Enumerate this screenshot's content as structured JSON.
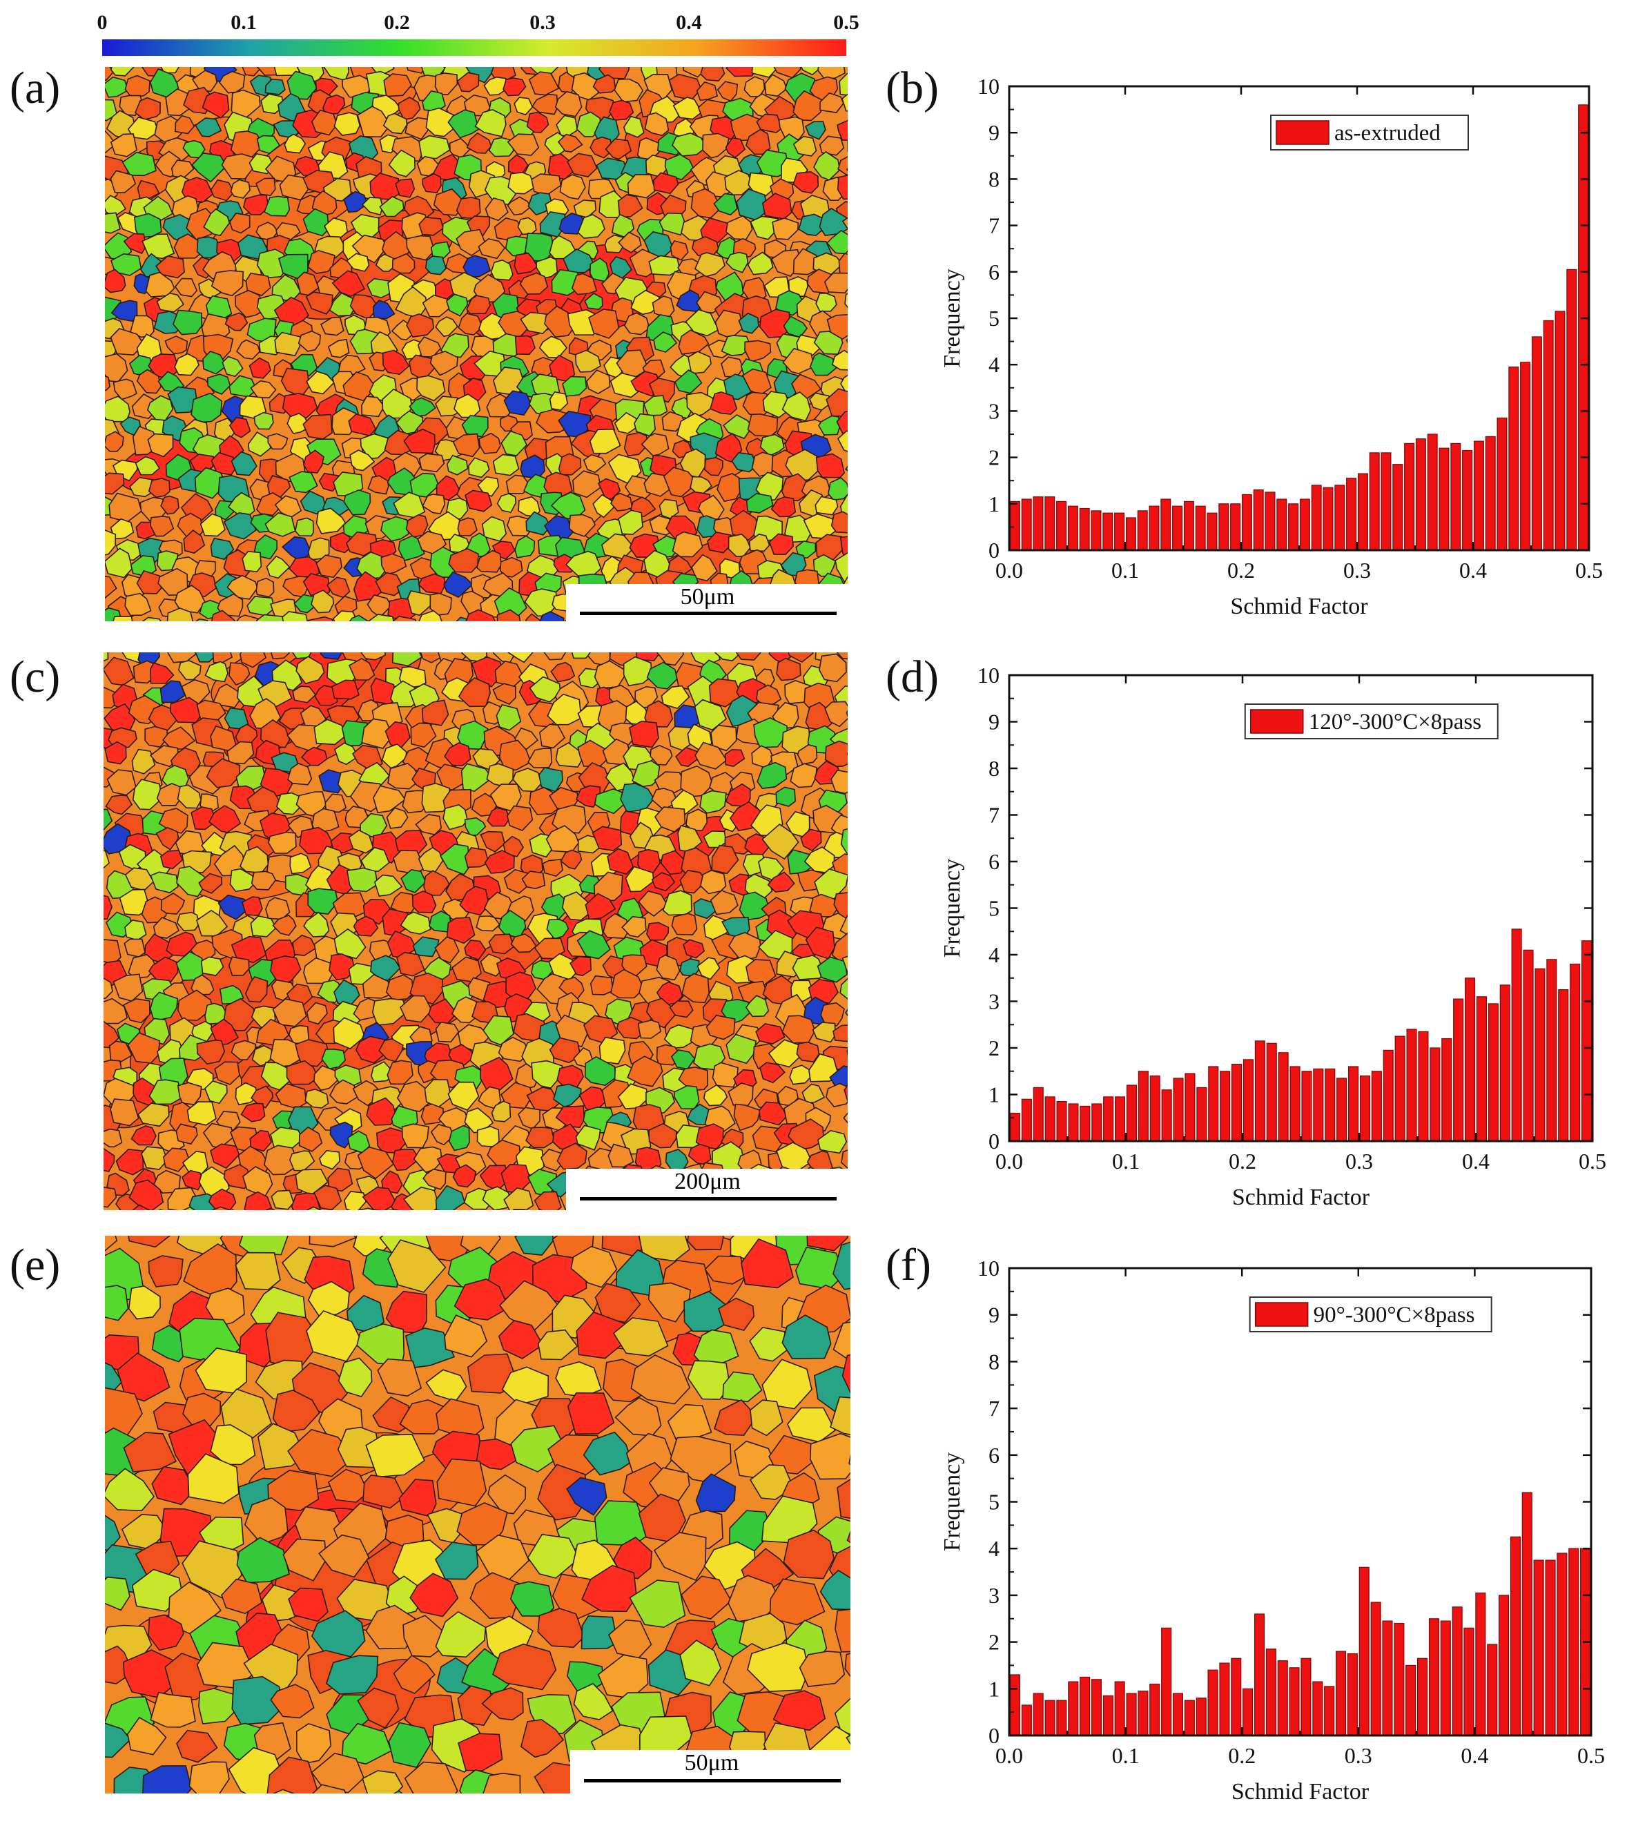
{
  "colorbar": {
    "ticks": [
      "0",
      "0.1",
      "0.2",
      "0.3",
      "0.4",
      "0.5"
    ],
    "tick_values": [
      0,
      0.1,
      0.2,
      0.3,
      0.4,
      0.5
    ],
    "colors": [
      "#1a1ad9",
      "#1fa2a8",
      "#33e02a",
      "#d6ea2a",
      "#f5a21e",
      "#ff1a1a"
    ]
  },
  "panels": {
    "a": {
      "label": "(a)",
      "scale_bar": "50μm"
    },
    "b": {
      "label": "(b)"
    },
    "c": {
      "label": "(c)",
      "scale_bar": "200μm"
    },
    "d": {
      "label": "(d)"
    },
    "e": {
      "label": "(e)",
      "scale_bar": "50μm"
    },
    "f": {
      "label": "(f)"
    }
  },
  "ebsd_palette": [
    "#ff2d1f",
    "#f0501c",
    "#f46d1f",
    "#f28c2a",
    "#f5a12a",
    "#e6c12a",
    "#f2e02a",
    "#c9e72a",
    "#9de02a",
    "#56d92f",
    "#34c83a",
    "#27a386",
    "#1e3fcc"
  ],
  "chart_data": [
    {
      "type": "bar",
      "panel": "b",
      "xlabel": "Schmid Factor",
      "ylabel": "Frequency",
      "xlim": [
        0.0,
        0.5
      ],
      "ylim": [
        0,
        10
      ],
      "xticks": [
        "0.0",
        "0.1",
        "0.2",
        "0.3",
        "0.4",
        "0.5"
      ],
      "yticks": [
        "0",
        "1",
        "2",
        "3",
        "4",
        "5",
        "6",
        "7",
        "8",
        "9",
        "10"
      ],
      "legend": "as-extruded",
      "legend_position": "top-center",
      "bar_color": "#ee1111",
      "bin_width": 0.01,
      "bin_start": 0.0,
      "values": [
        1.05,
        1.1,
        1.15,
        1.15,
        1.05,
        0.95,
        0.9,
        0.85,
        0.8,
        0.8,
        0.7,
        0.85,
        0.95,
        1.1,
        0.95,
        1.05,
        0.95,
        0.8,
        1.0,
        1.0,
        1.2,
        1.3,
        1.25,
        1.1,
        1.0,
        1.1,
        1.4,
        1.35,
        1.4,
        1.55,
        1.65,
        2.1,
        2.1,
        1.85,
        2.3,
        2.4,
        2.5,
        2.2,
        2.3,
        2.15,
        2.35,
        2.45,
        2.85,
        3.95,
        4.05,
        4.6,
        4.95,
        5.15,
        6.05,
        9.6
      ]
    },
    {
      "type": "bar",
      "panel": "d",
      "xlabel": "Schmid Factor",
      "ylabel": "Frequency",
      "xlim": [
        0.0,
        0.5
      ],
      "ylim": [
        0,
        10
      ],
      "xticks": [
        "0.0",
        "0.1",
        "0.2",
        "0.3",
        "0.4",
        "0.5"
      ],
      "yticks": [
        "0",
        "1",
        "2",
        "3",
        "4",
        "5",
        "6",
        "7",
        "8",
        "9",
        "10"
      ],
      "legend": "120°-300°C×8pass",
      "legend_position": "top-center",
      "bar_color": "#ee1111",
      "bin_width": 0.01,
      "bin_start": 0.0,
      "values": [
        0.6,
        0.9,
        1.15,
        0.95,
        0.85,
        0.8,
        0.75,
        0.8,
        0.95,
        0.95,
        1.2,
        1.5,
        1.4,
        1.1,
        1.35,
        1.45,
        1.15,
        1.6,
        1.5,
        1.65,
        1.75,
        2.15,
        2.1,
        1.9,
        1.6,
        1.5,
        1.55,
        1.55,
        1.35,
        1.6,
        1.4,
        1.5,
        1.95,
        2.25,
        2.4,
        2.35,
        2.0,
        2.2,
        3.05,
        3.5,
        3.1,
        2.95,
        3.35,
        4.55,
        4.1,
        3.7,
        3.9,
        3.25,
        3.8,
        4.3
      ]
    },
    {
      "type": "bar",
      "panel": "f",
      "xlabel": "Schmid Factor",
      "ylabel": "Frequency",
      "xlim": [
        0.0,
        0.5
      ],
      "ylim": [
        0,
        10
      ],
      "xticks": [
        "0.0",
        "0.1",
        "0.2",
        "0.3",
        "0.4",
        "0.5"
      ],
      "yticks": [
        "0",
        "1",
        "2",
        "3",
        "4",
        "5",
        "6",
        "7",
        "8",
        "9",
        "10"
      ],
      "legend": "90°-300°C×8pass",
      "legend_position": "top-center",
      "bar_color": "#ee1111",
      "bin_width": 0.01,
      "bin_start": 0.0,
      "values": [
        1.3,
        0.65,
        0.9,
        0.75,
        0.75,
        1.15,
        1.25,
        1.2,
        0.85,
        1.15,
        0.9,
        0.95,
        1.1,
        2.3,
        0.9,
        0.75,
        0.8,
        1.4,
        1.55,
        1.65,
        1.0,
        2.6,
        1.85,
        1.6,
        1.45,
        1.65,
        1.15,
        1.05,
        1.8,
        1.75,
        3.6,
        2.85,
        2.45,
        2.4,
        1.5,
        1.65,
        2.5,
        2.45,
        2.75,
        2.3,
        3.05,
        1.95,
        3.0,
        4.25,
        5.2,
        3.75,
        3.75,
        3.9,
        4.0,
        4.0
      ]
    }
  ]
}
